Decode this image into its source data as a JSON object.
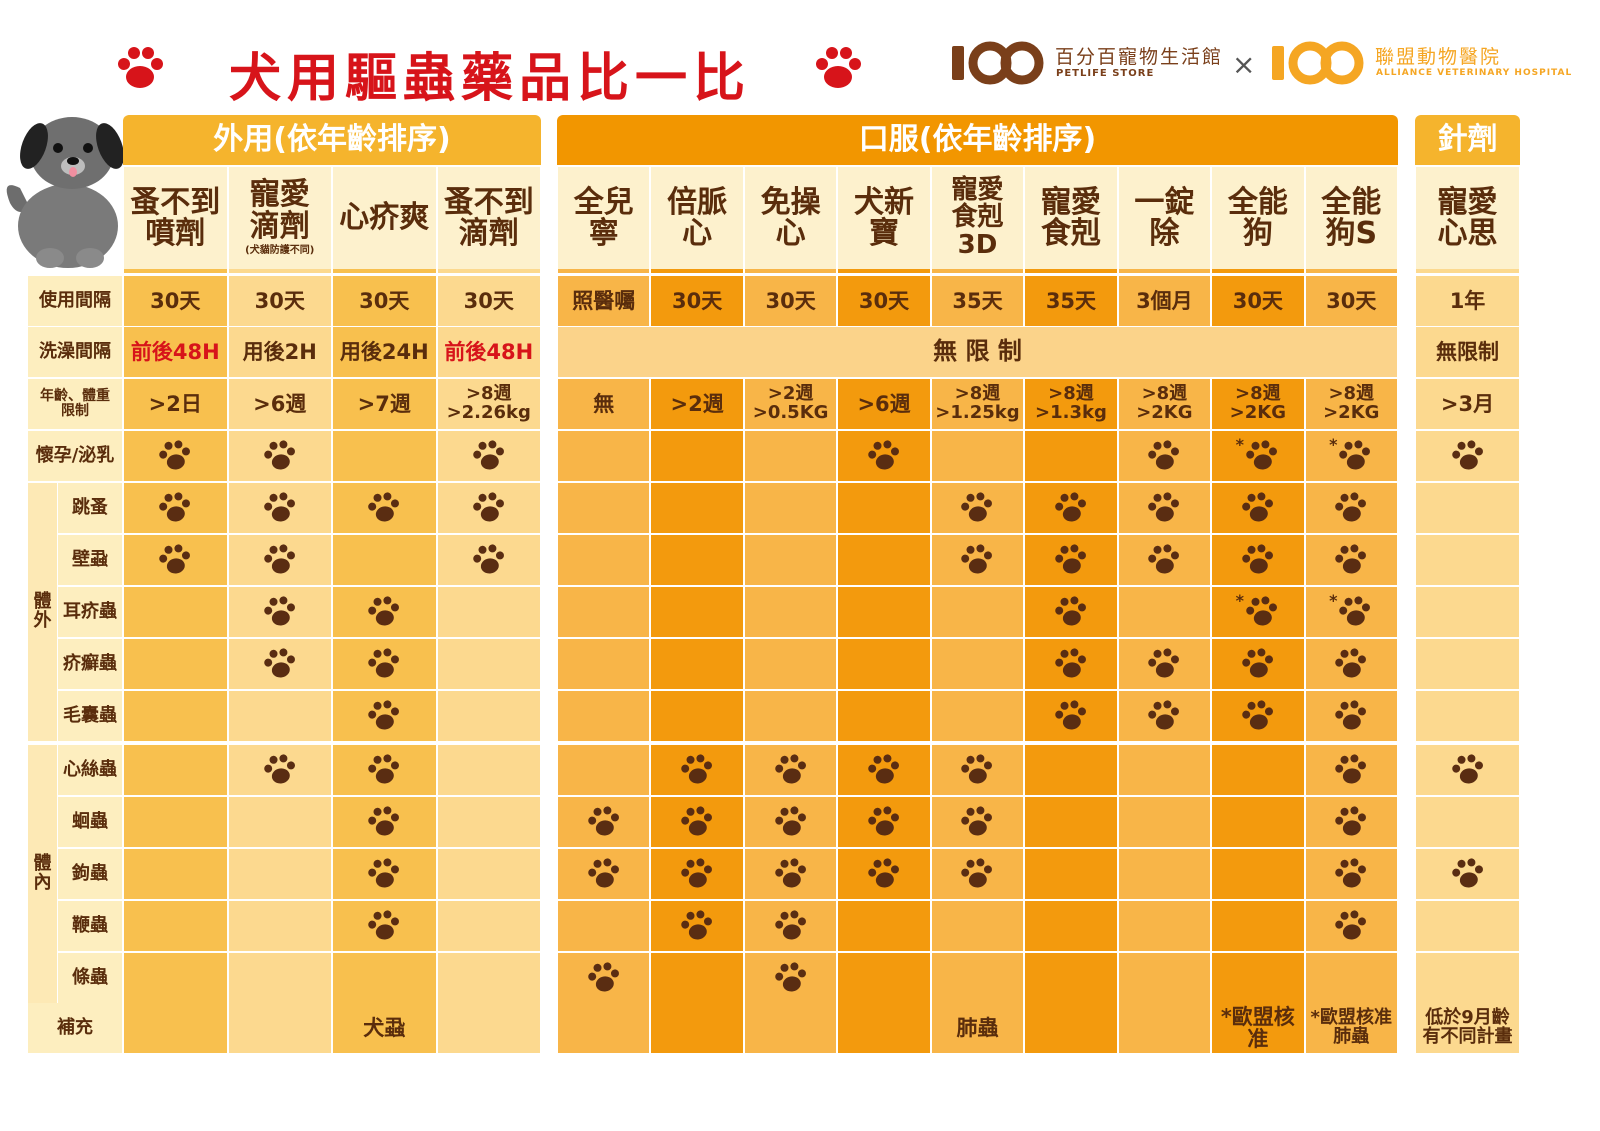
{
  "title": "犬用驅蟲藥品比一比",
  "brands": [
    {
      "name": "百分百寵物生活館",
      "english": "PETLIFE STORE",
      "color": "#7a3f1a"
    },
    {
      "name": "聯盟動物醫院",
      "english": "ALLIANCE VETERINARY HOSPITAL",
      "color": "#f5a623"
    }
  ],
  "brand_separator": "×",
  "table": {
    "groups": [
      {
        "title": "外用(依年齡排序)",
        "header_color": "#f5b42d",
        "column_colors": [
          "#f8c04e",
          "#fcd98f",
          "#f8c04e",
          "#fcd98f"
        ],
        "products": [
          {
            "name": "蚤不到\n噴劑"
          },
          {
            "name": "寵愛\n滴劑",
            "note": "(犬貓防護不同)"
          },
          {
            "name": "心疥爽"
          },
          {
            "name": "蚤不到\n滴劑"
          }
        ]
      },
      {
        "title": "口服(依年齡排序)",
        "header_color": "#f29600",
        "column_colors": [
          "#f8b548",
          "#f39a0d",
          "#f8b548",
          "#f39a0d",
          "#f8b548",
          "#f39a0d",
          "#f8b548",
          "#f39a0d",
          "#f8b548"
        ],
        "products": [
          {
            "name": "全兒\n寧"
          },
          {
            "name": "倍脈\n心"
          },
          {
            "name": "免操\n心"
          },
          {
            "name": "犬新\n寶"
          },
          {
            "name": "寵愛\n食剋\n3D"
          },
          {
            "name": "寵愛\n食剋"
          },
          {
            "name": "一錠\n除"
          },
          {
            "name": "全能\n狗"
          },
          {
            "name": "全能\n狗S"
          }
        ]
      },
      {
        "title": "針劑",
        "header_color": "#f5b42d",
        "column_colors": [
          "#fcd98f"
        ],
        "products": [
          {
            "name": "寵愛\n心思"
          }
        ]
      }
    ],
    "rows_top": [
      {
        "label": "使用間隔",
        "values": [
          [
            "30天",
            "30天",
            "30天",
            "30天"
          ],
          [
            "照醫囑",
            "30天",
            "30天",
            "30天",
            "35天",
            "35天",
            "3個月",
            "30天",
            "30天"
          ],
          [
            "1年"
          ]
        ]
      },
      {
        "label": "洗澡間隔",
        "values": [
          [
            "前後48H",
            "用後2H",
            "用後24H",
            "前後48H"
          ],
          [
            "無 限 制"
          ],
          [
            "無限制"
          ]
        ],
        "alert": {
          "group": 0,
          "cells": [
            0,
            3
          ],
          "color": "#d7141a"
        },
        "span_color": "#fbd38a"
      },
      {
        "label": "年齡、體重\n限制",
        "values": [
          [
            ">2日",
            ">6週",
            ">7週",
            ">8週\n>2.26kg"
          ],
          [
            "無",
            ">2週",
            ">2週\n>0.5KG",
            ">6週",
            ">8週\n>1.25kg",
            ">8週\n>1.3kg",
            ">8週\n>2KG",
            ">8週\n>2KG",
            ">8週\n>2KG"
          ],
          [
            ">3月"
          ]
        ]
      },
      {
        "label": "懷孕/泌乳",
        "values": [
          [
            true,
            true,
            false,
            true
          ],
          [
            false,
            false,
            false,
            true,
            false,
            false,
            true,
            "*",
            "*"
          ],
          [
            true
          ]
        ]
      }
    ],
    "sections": [
      {
        "label": "體\n外",
        "rows": [
          {
            "label": "跳蚤",
            "values": [
              [
                true,
                true,
                true,
                true
              ],
              [
                false,
                false,
                false,
                false,
                true,
                true,
                true,
                true,
                true
              ],
              [
                false
              ]
            ]
          },
          {
            "label": "壁蝨",
            "values": [
              [
                true,
                true,
                false,
                true
              ],
              [
                false,
                false,
                false,
                false,
                true,
                true,
                true,
                true,
                true
              ],
              [
                false
              ]
            ]
          },
          {
            "label": "耳疥蟲",
            "values": [
              [
                false,
                true,
                true,
                false
              ],
              [
                false,
                false,
                false,
                false,
                false,
                true,
                false,
                "*",
                "*"
              ],
              [
                false
              ]
            ]
          },
          {
            "label": "疥癬蟲",
            "values": [
              [
                false,
                true,
                true,
                false
              ],
              [
                false,
                false,
                false,
                false,
                false,
                true,
                true,
                true,
                true
              ],
              [
                false
              ]
            ]
          },
          {
            "label": "毛囊蟲",
            "values": [
              [
                false,
                false,
                true,
                false
              ],
              [
                false,
                false,
                false,
                false,
                false,
                true,
                true,
                true,
                true
              ],
              [
                false
              ]
            ]
          }
        ]
      },
      {
        "label": "體\n內",
        "rows": [
          {
            "label": "心絲蟲",
            "values": [
              [
                false,
                true,
                true,
                false
              ],
              [
                false,
                true,
                true,
                true,
                true,
                false,
                false,
                false,
                true
              ],
              [
                true
              ]
            ]
          },
          {
            "label": "蛔蟲",
            "values": [
              [
                false,
                false,
                true,
                false
              ],
              [
                true,
                true,
                true,
                true,
                true,
                false,
                false,
                false,
                true
              ],
              [
                false
              ]
            ]
          },
          {
            "label": "鉤蟲",
            "values": [
              [
                false,
                false,
                true,
                false
              ],
              [
                true,
                true,
                true,
                true,
                true,
                false,
                false,
                false,
                true
              ],
              [
                true
              ]
            ]
          },
          {
            "label": "鞭蟲",
            "values": [
              [
                false,
                false,
                true,
                false
              ],
              [
                false,
                true,
                true,
                false,
                false,
                false,
                false,
                false,
                true
              ],
              [
                false
              ]
            ]
          },
          {
            "label": "條蟲",
            "values": [
              [
                false,
                false,
                false,
                false
              ],
              [
                true,
                false,
                true,
                false,
                false,
                false,
                false,
                false,
                false
              ],
              [
                false
              ]
            ]
          }
        ]
      }
    ],
    "rows_bottom": [
      {
        "label": "補充",
        "values": [
          [
            null,
            null,
            "犬蝨",
            null
          ],
          [
            null,
            null,
            null,
            null,
            "肺蟲",
            null,
            null,
            "*歐盟核准",
            "*歐盟核准\n肺蟲"
          ],
          [
            "低於9月齡\n有不同計畫"
          ]
        ]
      }
    ]
  }
}
